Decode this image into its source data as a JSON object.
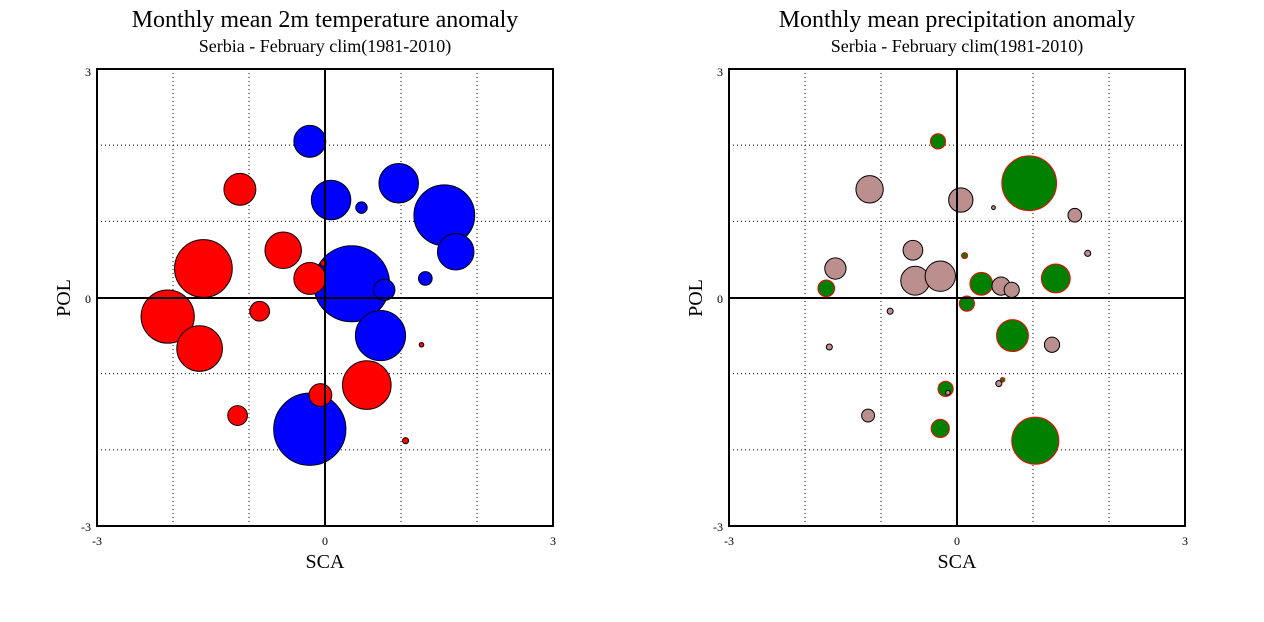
{
  "chart_data": [
    {
      "type": "scatter",
      "title": "Monthly mean 2m temperature anomaly",
      "subtitle": "Serbia - February  clim(1981-2010)",
      "xlabel": "SCA",
      "ylabel": "POL",
      "xlim": [
        -3,
        3
      ],
      "ylim": [
        -3,
        3
      ],
      "x_ticks": [
        "-3",
        "0",
        "3"
      ],
      "y_ticks": [
        "-3",
        "0",
        "3"
      ],
      "grid": true,
      "colors": {
        "positive": "#0000ff",
        "negative": "#ff0000",
        "outline": "#000000"
      },
      "points": [
        {
          "x": -0.2,
          "y": 2.05,
          "size": 0.42,
          "color": "positive"
        },
        {
          "x": 0.08,
          "y": 1.28,
          "size": 0.52,
          "color": "positive"
        },
        {
          "x": 0.48,
          "y": 1.18,
          "size": 0.15,
          "color": "positive"
        },
        {
          "x": 0.97,
          "y": 1.5,
          "size": 0.52,
          "color": "positive"
        },
        {
          "x": 1.57,
          "y": 1.08,
          "size": 0.8,
          "color": "positive"
        },
        {
          "x": 1.72,
          "y": 0.6,
          "size": 0.48,
          "color": "positive"
        },
        {
          "x": 1.32,
          "y": 0.25,
          "size": 0.18,
          "color": "positive"
        },
        {
          "x": 0.35,
          "y": 0.18,
          "size": 1.0,
          "color": "positive"
        },
        {
          "x": 0.78,
          "y": 0.1,
          "size": 0.28,
          "color": "positive"
        },
        {
          "x": 0.73,
          "y": -0.5,
          "size": 0.66,
          "color": "positive"
        },
        {
          "x": -0.2,
          "y": -1.73,
          "size": 0.95,
          "color": "positive"
        },
        {
          "x": -1.12,
          "y": 1.42,
          "size": 0.42,
          "color": "negative"
        },
        {
          "x": -0.55,
          "y": 0.62,
          "size": 0.48,
          "color": "negative"
        },
        {
          "x": -0.2,
          "y": 0.25,
          "size": 0.42,
          "color": "negative"
        },
        {
          "x": -1.6,
          "y": 0.38,
          "size": 0.76,
          "color": "negative"
        },
        {
          "x": -0.02,
          "y": 0.45,
          "size": 0.08,
          "color": "negative"
        },
        {
          "x": -2.07,
          "y": -0.25,
          "size": 0.7,
          "color": "negative"
        },
        {
          "x": -1.65,
          "y": -0.67,
          "size": 0.6,
          "color": "negative"
        },
        {
          "x": -0.86,
          "y": -0.18,
          "size": 0.26,
          "color": "negative"
        },
        {
          "x": 0.55,
          "y": -1.15,
          "size": 0.64,
          "color": "negative"
        },
        {
          "x": -0.06,
          "y": -1.28,
          "size": 0.3,
          "color": "negative"
        },
        {
          "x": -1.15,
          "y": -1.55,
          "size": 0.26,
          "color": "negative"
        },
        {
          "x": 1.27,
          "y": -0.62,
          "size": 0.06,
          "color": "negative"
        },
        {
          "x": 1.06,
          "y": -1.88,
          "size": 0.08,
          "color": "negative"
        }
      ]
    },
    {
      "type": "scatter",
      "title": "Monthly mean precipitation anomaly",
      "subtitle": "Serbia - February  clim(1981-2010)",
      "xlabel": "SCA",
      "ylabel": "POL",
      "xlim": [
        -3,
        3
      ],
      "ylim": [
        -3,
        3
      ],
      "x_ticks": [
        "-3",
        "0",
        "3"
      ],
      "y_ticks": [
        "-3",
        "0",
        "3"
      ],
      "grid": true,
      "colors": {
        "positive": "#008000",
        "negative": "#bc8f8f",
        "positive_outline": "#ff0000",
        "negative_outline": "#000000"
      },
      "points": [
        {
          "x": -0.25,
          "y": 2.05,
          "size": 0.2,
          "color": "positive"
        },
        {
          "x": 0.95,
          "y": 1.5,
          "size": 0.72,
          "color": "positive"
        },
        {
          "x": 0.1,
          "y": 0.55,
          "size": 0.08,
          "color": "positive"
        },
        {
          "x": 0.32,
          "y": 0.18,
          "size": 0.3,
          "color": "positive"
        },
        {
          "x": 1.3,
          "y": 0.25,
          "size": 0.38,
          "color": "positive"
        },
        {
          "x": -1.72,
          "y": 0.12,
          "size": 0.22,
          "color": "positive"
        },
        {
          "x": 0.13,
          "y": -0.08,
          "size": 0.2,
          "color": "positive"
        },
        {
          "x": 0.73,
          "y": -0.5,
          "size": 0.42,
          "color": "positive"
        },
        {
          "x": -0.15,
          "y": -1.2,
          "size": 0.2,
          "color": "positive"
        },
        {
          "x": 0.6,
          "y": -1.08,
          "size": 0.06,
          "color": "positive"
        },
        {
          "x": -0.22,
          "y": -1.72,
          "size": 0.24,
          "color": "positive"
        },
        {
          "x": 1.03,
          "y": -1.88,
          "size": 0.62,
          "color": "positive"
        },
        {
          "x": -1.15,
          "y": 1.42,
          "size": 0.36,
          "color": "negative"
        },
        {
          "x": 0.05,
          "y": 1.28,
          "size": 0.32,
          "color": "negative"
        },
        {
          "x": 0.48,
          "y": 1.18,
          "size": 0.05,
          "color": "negative"
        },
        {
          "x": 1.55,
          "y": 1.08,
          "size": 0.18,
          "color": "negative"
        },
        {
          "x": 1.72,
          "y": 0.58,
          "size": 0.08,
          "color": "negative"
        },
        {
          "x": -0.58,
          "y": 0.62,
          "size": 0.26,
          "color": "negative"
        },
        {
          "x": -1.6,
          "y": 0.38,
          "size": 0.28,
          "color": "negative"
        },
        {
          "x": -0.55,
          "y": 0.22,
          "size": 0.38,
          "color": "negative"
        },
        {
          "x": -0.22,
          "y": 0.28,
          "size": 0.4,
          "color": "negative"
        },
        {
          "x": 0.58,
          "y": 0.15,
          "size": 0.24,
          "color": "negative"
        },
        {
          "x": 0.72,
          "y": 0.1,
          "size": 0.2,
          "color": "negative"
        },
        {
          "x": -0.88,
          "y": -0.18,
          "size": 0.08,
          "color": "negative"
        },
        {
          "x": -1.68,
          "y": -0.65,
          "size": 0.08,
          "color": "negative"
        },
        {
          "x": 1.25,
          "y": -0.62,
          "size": 0.2,
          "color": "negative"
        },
        {
          "x": 0.55,
          "y": -1.13,
          "size": 0.08,
          "color": "negative"
        },
        {
          "x": -1.17,
          "y": -1.55,
          "size": 0.17,
          "color": "negative"
        },
        {
          "x": -0.12,
          "y": -1.25,
          "size": 0.06,
          "color": "negative"
        }
      ]
    }
  ]
}
